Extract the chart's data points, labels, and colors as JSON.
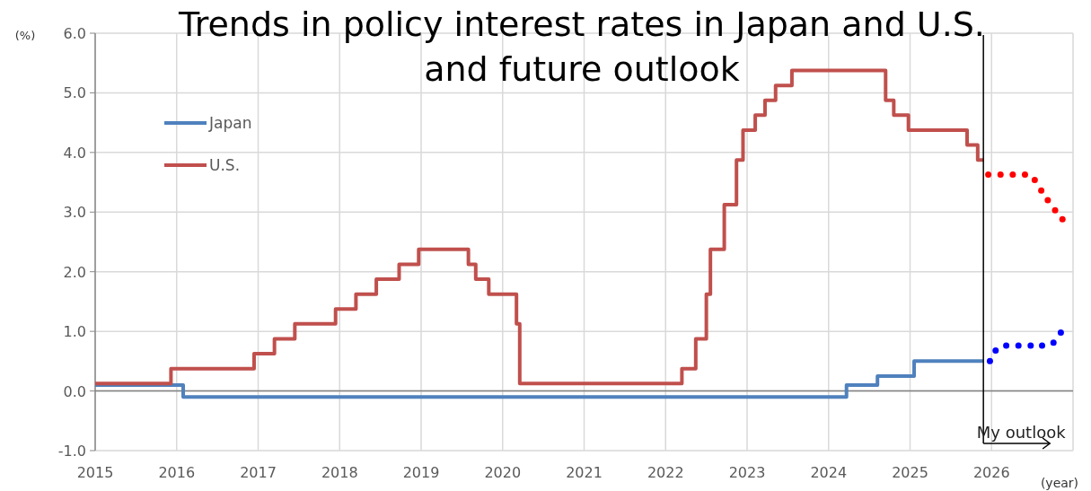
{
  "chart_data": {
    "type": "step",
    "title": "Trends in policy interest rates in Japan and U.S. and future outlook",
    "ylabel": "(%)",
    "xlabel": "(year)",
    "xlim": [
      2015,
      2027
    ],
    "xticks": [
      2015,
      2016,
      2017,
      2018,
      2019,
      2020,
      2021,
      2022,
      2023,
      2024,
      2025,
      2026
    ],
    "ylim": [
      -1,
      6
    ],
    "yticks": [
      {
        "value": -1,
        "label": "-1.0"
      },
      {
        "value": 0,
        "label": "0.0"
      },
      {
        "value": 1,
        "label": "1.0"
      },
      {
        "value": 2,
        "label": "2.0"
      },
      {
        "value": 3,
        "label": "3.0"
      },
      {
        "value": 4,
        "label": "4.0"
      },
      {
        "value": 5,
        "label": "5.0"
      },
      {
        "value": 6,
        "label": "6.0"
      }
    ],
    "grid": true,
    "legend": "top left",
    "series": [
      {
        "name": "Japan",
        "color": "#4f81bd",
        "x": [
          2015,
          2016.08,
          2024.22,
          2024.6,
          2025.05,
          2025.9
        ],
        "values": [
          0.1,
          -0.1,
          0.1,
          0.25,
          0.5,
          0.5
        ]
      },
      {
        "name": "U.S.",
        "color": "#c0504d",
        "x": [
          2015,
          2015.93,
          2016.95,
          2017.2,
          2017.45,
          2017.95,
          2018.2,
          2018.45,
          2018.73,
          2018.97,
          2019.58,
          2019.67,
          2019.83,
          2020.17,
          2020.21,
          2022.2,
          2022.37,
          2022.5,
          2022.55,
          2022.72,
          2022.87,
          2022.95,
          2023.1,
          2023.22,
          2023.35,
          2023.55,
          2024.7,
          2024.8,
          2024.98,
          2025.7,
          2025.83,
          2025.9
        ],
        "values": [
          0.125,
          0.375,
          0.625,
          0.875,
          1.125,
          1.375,
          1.625,
          1.875,
          2.125,
          2.375,
          2.125,
          1.875,
          1.625,
          1.125,
          0.125,
          0.375,
          0.875,
          1.625,
          2.375,
          3.125,
          3.875,
          4.375,
          4.625,
          4.875,
          5.125,
          5.375,
          4.875,
          4.625,
          4.375,
          4.125,
          3.875,
          3.875
        ]
      },
      {
        "type": "scatter",
        "marker": "circle",
        "color": "#ff0000",
        "x": [
          2025.96,
          2026.11,
          2026.26,
          2026.41,
          2026.53,
          2026.61,
          2026.69,
          2026.78,
          2026.87
        ],
        "values": [
          3.63,
          3.63,
          3.63,
          3.63,
          3.54,
          3.36,
          3.2,
          3.03,
          2.88
        ]
      },
      {
        "type": "scatter",
        "marker": "circle",
        "color": "#0000ff",
        "x": [
          2025.98,
          2026.05,
          2026.18,
          2026.33,
          2026.48,
          2026.62,
          2026.76,
          2026.85
        ],
        "values": [
          0.5,
          0.68,
          0.76,
          0.76,
          0.76,
          0.76,
          0.81,
          0.98
        ]
      }
    ],
    "ref_lines": [
      {
        "axis": "x",
        "value": 2025.9,
        "label": "My outlook",
        "color": "#000000"
      }
    ]
  }
}
